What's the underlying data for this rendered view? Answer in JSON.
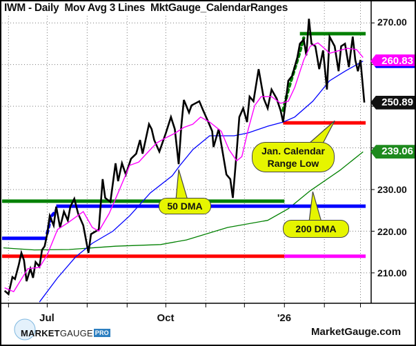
{
  "chart_data": {
    "type": "line",
    "title": "IWM - Daily  Mov Avg 3 Lines  MktGauge_CalendarRanges",
    "xlim": [
      "2025-05-27",
      "2026-03-05"
    ],
    "ylim": [
      202.7,
      275
    ],
    "grid": true,
    "y_ticks": [
      "270.00",
      "230.00",
      "220.00",
      "210.00"
    ],
    "y_tick_values": [
      270,
      230,
      220,
      210
    ],
    "y_grid_values": [
      210,
      220,
      230,
      240,
      250,
      260,
      270
    ],
    "x_ticks": [
      {
        "label": "Jul",
        "date": "2025-07-01"
      },
      {
        "label": "Oct",
        "date": "2025-10-01"
      },
      {
        "label": "'26",
        "date": "2026-01-01"
      }
    ],
    "x_minor_ticks": [
      "2025-06-01",
      "2025-07-01",
      "2025-08-01",
      "2025-09-01",
      "2025-10-01",
      "2025-11-01",
      "2025-12-01",
      "2026-01-01",
      "2026-02-01",
      "2026-03-01"
    ],
    "colors": {
      "price": "#000000",
      "ma20": "#ff00ff",
      "ma50": "#0000ff",
      "ma200": "#008000",
      "red": "#ff0000",
      "green": "#008000",
      "blue": "#0000ff",
      "magenta": "#ff00ff"
    },
    "price": [
      [
        "2025-05-29",
        205.7
      ],
      [
        "2025-06-01",
        204.9
      ],
      [
        "2025-06-04",
        209
      ],
      [
        "2025-06-06",
        208.5
      ],
      [
        "2025-06-09",
        212
      ],
      [
        "2025-06-11",
        214.8
      ],
      [
        "2025-06-13",
        213
      ],
      [
        "2025-06-15",
        208
      ],
      [
        "2025-06-18",
        211
      ],
      [
        "2025-06-20",
        208.8
      ],
      [
        "2025-06-22",
        212.6
      ],
      [
        "2025-06-25",
        211.5
      ],
      [
        "2025-06-27",
        215.5
      ],
      [
        "2025-06-29",
        216.4
      ],
      [
        "2025-07-01",
        219.3
      ],
      [
        "2025-07-03",
        223.7
      ],
      [
        "2025-07-06",
        221.4
      ],
      [
        "2025-07-08",
        225.9
      ],
      [
        "2025-07-11",
        220.9
      ],
      [
        "2025-07-14",
        224.7
      ],
      [
        "2025-07-17",
        222.6
      ],
      [
        "2025-07-19",
        225.9
      ],
      [
        "2025-07-22",
        227.8
      ],
      [
        "2025-07-25",
        224.2
      ],
      [
        "2025-07-29",
        221.4
      ],
      [
        "2025-08-02",
        214.8
      ],
      [
        "2025-08-04",
        219.3
      ],
      [
        "2025-08-10",
        220.4
      ],
      [
        "2025-08-13",
        232.5
      ],
      [
        "2025-08-15",
        228
      ],
      [
        "2025-08-19",
        227
      ],
      [
        "2025-08-23",
        236.3
      ],
      [
        "2025-08-25",
        232
      ],
      [
        "2025-08-28",
        236.3
      ],
      [
        "2025-08-31",
        233.6
      ],
      [
        "2025-09-04",
        237.4
      ],
      [
        "2025-09-08",
        238.6
      ],
      [
        "2025-09-11",
        241.9
      ],
      [
        "2025-09-13",
        238.6
      ],
      [
        "2025-09-18",
        245.7
      ],
      [
        "2025-09-20",
        244.5
      ],
      [
        "2025-09-22",
        241.9
      ],
      [
        "2025-09-26",
        239.1
      ],
      [
        "2025-10-01",
        243.5
      ],
      [
        "2025-10-05",
        247.4
      ],
      [
        "2025-10-08",
        244.5
      ],
      [
        "2025-10-11",
        236.1
      ],
      [
        "2025-10-13",
        245.2
      ],
      [
        "2025-10-15",
        251.5
      ],
      [
        "2025-10-19",
        248.5
      ],
      [
        "2025-10-21",
        250.2
      ],
      [
        "2025-10-27",
        251.2
      ],
      [
        "2025-10-30",
        249
      ],
      [
        "2025-11-03",
        246.2
      ],
      [
        "2025-11-06",
        244
      ],
      [
        "2025-11-07",
        240.2
      ],
      [
        "2025-11-11",
        244.5
      ],
      [
        "2025-11-14",
        239.1
      ],
      [
        "2025-11-17",
        233.6
      ],
      [
        "2025-11-20",
        232.5
      ],
      [
        "2025-11-22",
        228
      ],
      [
        "2025-11-25",
        239.1
      ],
      [
        "2025-11-27",
        247.4
      ],
      [
        "2025-11-30",
        249.5
      ],
      [
        "2025-12-03",
        246.2
      ],
      [
        "2025-12-05",
        252.3
      ],
      [
        "2025-12-08",
        251.2
      ],
      [
        "2025-12-12",
        258.9
      ],
      [
        "2025-12-16",
        251.8
      ],
      [
        "2025-12-19",
        249.5
      ],
      [
        "2025-12-22",
        254
      ],
      [
        "2025-12-26",
        251.8
      ],
      [
        "2025-12-29",
        249
      ],
      [
        "2025-12-31",
        246.2
      ],
      [
        "2026-01-04",
        256.1
      ],
      [
        "2026-01-07",
        257.3
      ],
      [
        "2026-01-11",
        261.7
      ],
      [
        "2026-01-13",
        265
      ],
      [
        "2026-01-16",
        266
      ],
      [
        "2026-01-18",
        262.2
      ],
      [
        "2026-01-20",
        271
      ],
      [
        "2026-01-22",
        265
      ],
      [
        "2026-01-25",
        264.4
      ],
      [
        "2026-01-28",
        258.9
      ],
      [
        "2026-01-31",
        263.4
      ],
      [
        "2026-02-03",
        254
      ],
      [
        "2026-02-05",
        266.7
      ],
      [
        "2026-02-09",
        264.4
      ],
      [
        "2026-02-12",
        258.4
      ],
      [
        "2026-02-14",
        264.4
      ],
      [
        "2026-02-17",
        265
      ],
      [
        "2026-02-20",
        259.4
      ],
      [
        "2026-02-23",
        266.7
      ],
      [
        "2026-02-25",
        261.1
      ],
      [
        "2026-02-27",
        258.4
      ],
      [
        "2026-03-01",
        261.1
      ],
      [
        "2026-03-04",
        250.89
      ]
    ],
    "ma20": [
      [
        "2025-05-29",
        206.4
      ],
      [
        "2025-06-05",
        205.5
      ],
      [
        "2025-06-16",
        211
      ],
      [
        "2025-06-25",
        211.3
      ],
      [
        "2025-07-01",
        214.3
      ],
      [
        "2025-07-09",
        220.4
      ],
      [
        "2025-07-17",
        222
      ],
      [
        "2025-07-29",
        224.7
      ],
      [
        "2025-08-05",
        220.9
      ],
      [
        "2025-08-10",
        220
      ],
      [
        "2025-08-18",
        224.2
      ],
      [
        "2025-08-25",
        229.2
      ],
      [
        "2025-09-03",
        235.8
      ],
      [
        "2025-09-10",
        236.6
      ],
      [
        "2025-09-19",
        239.6
      ],
      [
        "2025-09-24",
        241.2
      ],
      [
        "2025-10-01",
        242.4
      ],
      [
        "2025-10-08",
        243.5
      ],
      [
        "2025-10-15",
        244.9
      ],
      [
        "2025-10-22",
        245.7
      ],
      [
        "2025-10-28",
        247.4
      ],
      [
        "2025-11-04",
        246.2
      ],
      [
        "2025-11-13",
        244
      ],
      [
        "2025-11-19",
        239.6
      ],
      [
        "2025-11-25",
        236.9
      ],
      [
        "2025-11-29",
        237.9
      ],
      [
        "2025-12-04",
        244.5
      ],
      [
        "2025-12-09",
        250.2
      ],
      [
        "2025-12-14",
        252.3
      ],
      [
        "2025-12-22",
        252.3
      ],
      [
        "2025-12-29",
        250.7
      ],
      [
        "2026-01-04",
        251.2
      ],
      [
        "2026-01-09",
        254.5
      ],
      [
        "2026-01-16",
        261.1
      ],
      [
        "2026-01-21",
        264.4
      ],
      [
        "2026-01-27",
        265.2
      ],
      [
        "2026-02-01",
        263.9
      ],
      [
        "2026-02-05",
        262.7
      ],
      [
        "2026-02-13",
        263.4
      ],
      [
        "2026-02-19",
        263.9
      ],
      [
        "2026-02-26",
        263.6
      ],
      [
        "2026-03-03",
        261.7
      ]
    ],
    "ma50": [
      [
        "2025-06-25",
        203
      ],
      [
        "2025-07-09",
        208.8
      ],
      [
        "2025-07-23",
        213.8
      ],
      [
        "2025-08-05",
        217.1
      ],
      [
        "2025-08-21",
        220
      ],
      [
        "2025-09-03",
        223.7
      ],
      [
        "2025-09-19",
        229.2
      ],
      [
        "2025-10-06",
        233.3
      ],
      [
        "2025-10-12",
        235.8
      ],
      [
        "2025-10-22",
        239.6
      ],
      [
        "2025-11-04",
        242.9
      ],
      [
        "2025-11-23",
        242.9
      ],
      [
        "2025-12-04",
        243.6
      ],
      [
        "2025-12-19",
        245.2
      ],
      [
        "2025-12-31",
        246.2
      ],
      [
        "2026-01-09",
        247.4
      ],
      [
        "2026-01-23",
        251.2
      ],
      [
        "2026-02-05",
        256.1
      ],
      [
        "2026-02-17",
        258.4
      ],
      [
        "2026-03-03",
        260.83
      ]
    ],
    "ma200": [
      [
        "2025-05-28",
        216
      ],
      [
        "2025-06-21",
        215.5
      ],
      [
        "2025-07-18",
        215.6
      ],
      [
        "2025-08-23",
        216.4
      ],
      [
        "2025-09-27",
        216.8
      ],
      [
        "2025-10-17",
        217.9
      ],
      [
        "2025-11-18",
        220.9
      ],
      [
        "2025-12-19",
        222.6
      ],
      [
        "2026-01-04",
        225.4
      ],
      [
        "2026-01-21",
        229.7
      ],
      [
        "2026-02-13",
        234.6
      ],
      [
        "2026-03-03",
        239.06
      ]
    ],
    "levels": [
      {
        "color": "green",
        "value": 267.4,
        "from": "2026-01-13",
        "to": "2026-03-05"
      },
      {
        "color": "red",
        "value": 246.0,
        "from": "2025-12-31",
        "to": "2026-03-05"
      },
      {
        "color": "green",
        "value": 227.2,
        "from": "2025-05-27",
        "to": "2026-01-01"
      },
      {
        "color": "blue",
        "value": 226.0,
        "from": "2025-07-08",
        "to": "2026-03-05"
      },
      {
        "color": "blue",
        "value": 218.3,
        "from": "2025-05-27",
        "to": "2025-07-01"
      },
      {
        "color": "red",
        "value": 214.0,
        "from": "2025-05-27",
        "to": "2026-01-01"
      },
      {
        "color": "magenta",
        "value": 214.0,
        "from": "2026-01-01",
        "to": "2026-03-05"
      }
    ],
    "dotted_segments": [
      {
        "color": "green",
        "points": [
          [
            "2025-12-31",
            249
          ],
          [
            "2026-01-04",
            254
          ],
          [
            "2026-01-08",
            258
          ],
          [
            "2026-01-12",
            262
          ],
          [
            "2026-01-16",
            266.4
          ]
        ]
      },
      {
        "color": "blue",
        "points": [
          [
            "2025-07-01",
            219.5
          ],
          [
            "2025-07-04",
            223.5
          ],
          [
            "2025-07-08",
            225
          ]
        ]
      }
    ],
    "value_tags": [
      {
        "label": "260.83",
        "color": "#ff00ff",
        "value": 260.83
      },
      {
        "label": "250.89",
        "color": "#111111",
        "value": 250.89
      },
      {
        "label": "239.06",
        "color": "#1e8a1e",
        "value": 239.06
      }
    ],
    "annotations": [
      {
        "text": "50 DMA",
        "points_to": [
          "2025-10-11",
          234.8
        ]
      },
      {
        "text": "Jan. Calendar Range Low",
        "points_to": [
          "2026-02-09",
          246.5
        ]
      },
      {
        "text": "200 DMA",
        "points_to": [
          "2026-01-23",
          229.5
        ]
      }
    ]
  },
  "branding": {
    "logo_bold": "MARKET",
    "logo_light": "GAUGE",
    "logo_pro": "PRO",
    "site": "MarketGauge.com"
  }
}
